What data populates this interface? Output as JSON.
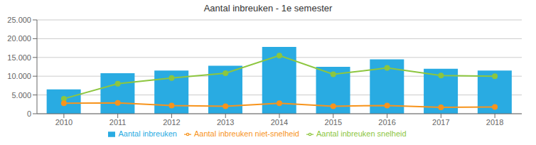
{
  "chart_data": {
    "type": "bar",
    "title": "Aantal inbreuken - 1e semester",
    "categories": [
      "2010",
      "2011",
      "2012",
      "2013",
      "2014",
      "2015",
      "2016",
      "2017",
      "2018"
    ],
    "series": [
      {
        "name": "Aantal inbreuken",
        "type": "bar",
        "color": "#29ABE2",
        "values": [
          6500,
          10800,
          11500,
          12800,
          17800,
          12500,
          14500,
          12000,
          11500
        ]
      },
      {
        "name": "Aantal inbreuken snelheid",
        "type": "line",
        "color": "#8DC63F",
        "marker": "circle",
        "values": [
          4000,
          8000,
          9500,
          10800,
          15500,
          10500,
          12200,
          10200,
          10000
        ]
      },
      {
        "name": "Aantal inbreuken niet-snelheid",
        "type": "line",
        "color": "#F7941D",
        "marker": "circle",
        "values": [
          2800,
          2900,
          2200,
          2000,
          2800,
          2000,
          2200,
          1700,
          1800
        ]
      }
    ],
    "ylim": [
      0,
      25000
    ],
    "yticks": [
      0,
      {
        "value": 5000,
        "label": "5.000"
      },
      {
        "value": 10000,
        "label": "10.000"
      },
      {
        "value": 15000,
        "label": "15.000"
      },
      {
        "value": 20000,
        "label": "20.000"
      },
      {
        "value": 25000,
        "label": "25.000"
      }
    ],
    "grid": true,
    "legend": "bottom"
  }
}
